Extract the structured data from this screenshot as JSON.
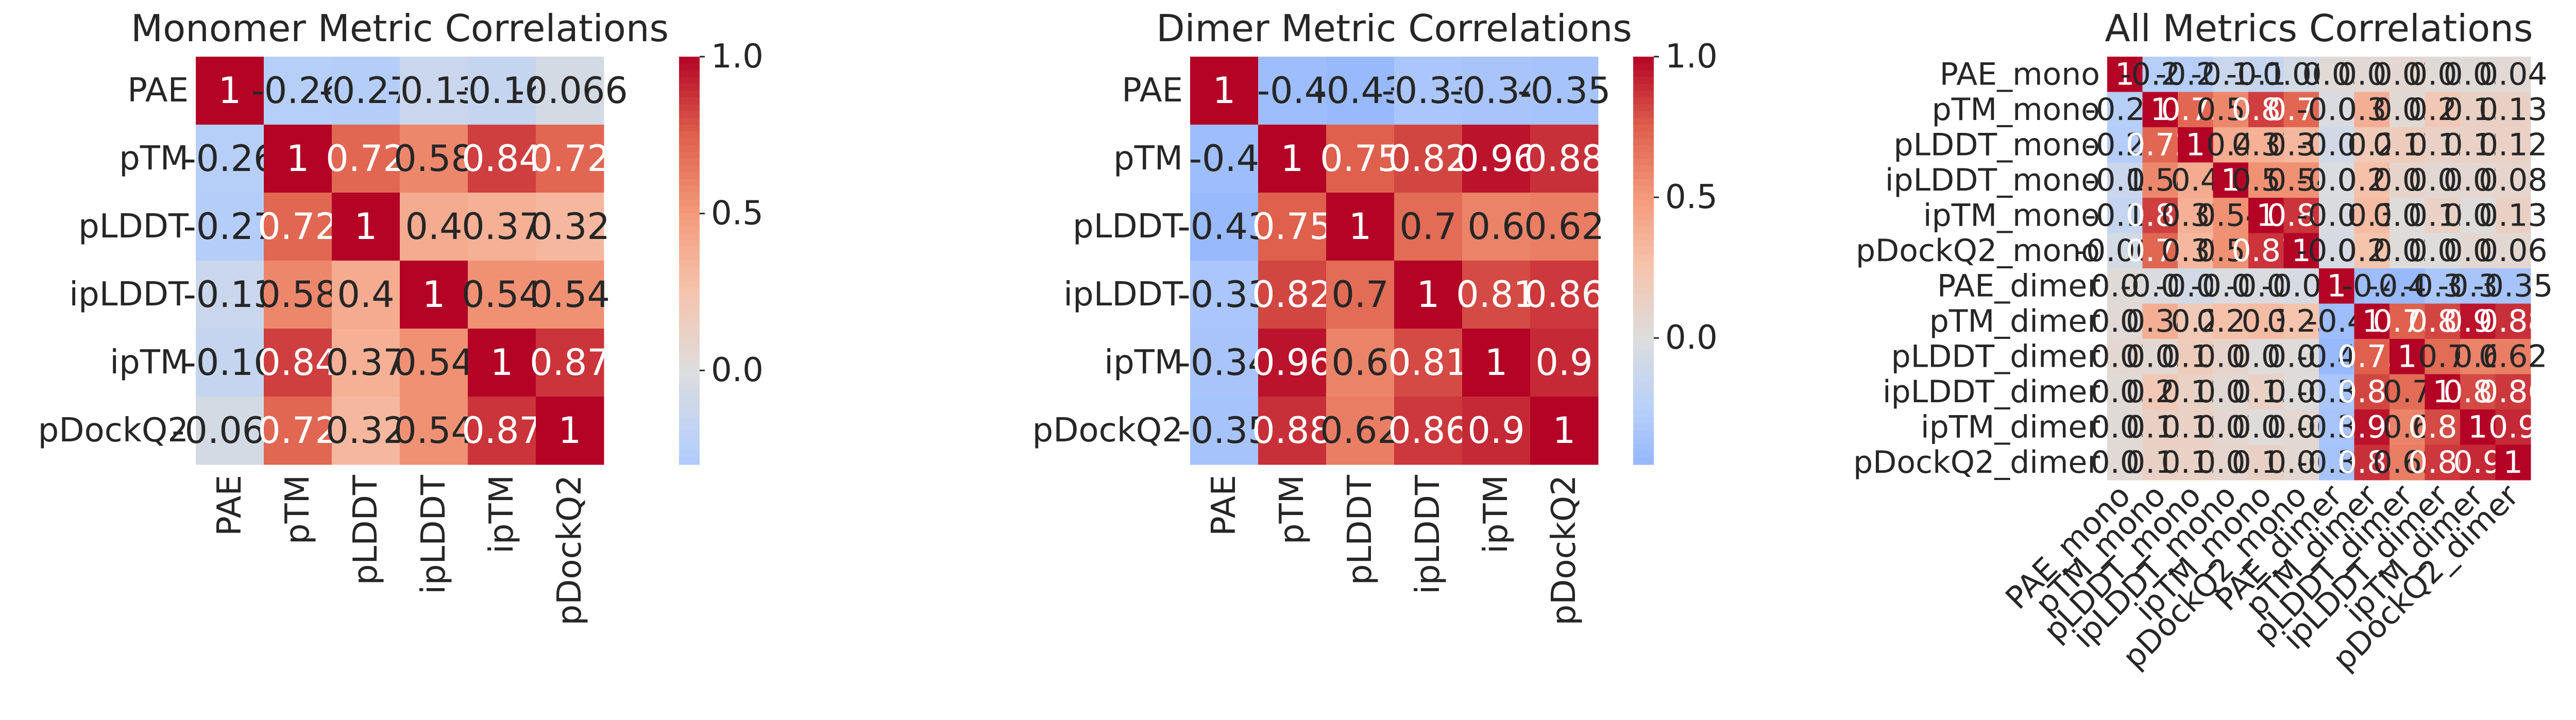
{
  "chart_data": [
    {
      "type": "heatmap",
      "title": "Monomer Metric Correlations",
      "labels": [
        "PAE",
        "pTM",
        "pLDDT",
        "ipLDDT",
        "ipTM",
        "pDockQ2"
      ],
      "values": [
        [
          1,
          -0.26,
          -0.27,
          -0.13,
          -0.16,
          -0.066
        ],
        [
          -0.26,
          1,
          0.72,
          0.58,
          0.84,
          0.72
        ],
        [
          -0.27,
          0.72,
          1,
          0.4,
          0.37,
          0.32
        ],
        [
          -0.13,
          0.58,
          0.4,
          1,
          0.54,
          0.54
        ],
        [
          -0.16,
          0.84,
          0.37,
          0.54,
          1,
          0.87
        ],
        [
          -0.066,
          0.72,
          0.32,
          0.54,
          0.87,
          1
        ]
      ],
      "colorbar_ticks": [
        "1.0",
        "0.5",
        "0.0"
      ],
      "colorbar_range": [
        -0.3,
        1.0
      ],
      "colormap": "coolwarm"
    },
    {
      "type": "heatmap",
      "title": "Dimer Metric Correlations",
      "labels": [
        "PAE",
        "pTM",
        "pLDDT",
        "ipLDDT",
        "ipTM",
        "pDockQ2"
      ],
      "values": [
        [
          1,
          -0.4,
          -0.43,
          -0.33,
          -0.34,
          -0.35
        ],
        [
          -0.4,
          1,
          0.75,
          0.82,
          0.96,
          0.88
        ],
        [
          -0.43,
          0.75,
          1,
          0.7,
          0.6,
          0.62
        ],
        [
          -0.33,
          0.82,
          0.7,
          1,
          0.81,
          0.86
        ],
        [
          -0.34,
          0.96,
          0.6,
          0.81,
          1,
          0.9
        ],
        [
          -0.35,
          0.88,
          0.62,
          0.86,
          0.9,
          1
        ]
      ],
      "colorbar_ticks": [
        "1.0",
        "0.5",
        "0.0"
      ],
      "colorbar_range": [
        -0.45,
        1.0
      ],
      "colormap": "coolwarm"
    },
    {
      "type": "heatmap",
      "title": "All Metrics Correlations",
      "labels": [
        "PAE_mono",
        "pTM_mono",
        "pLDDT_mono",
        "ipLDDT_mono",
        "ipTM_mono",
        "pDockQ2_mono",
        "PAE_dimer",
        "pTM_dimer",
        "pLDDT_dimer",
        "ipLDDT_dimer",
        "ipTM_dimer",
        "pDockQ2_dimer"
      ],
      "values": [
        [
          1,
          -0.26,
          -0.27,
          -0.13,
          -0.16,
          -0.066,
          0.03,
          0.04,
          0.07,
          0.03,
          0.03,
          0.04
        ],
        [
          -0.26,
          1,
          0.72,
          0.58,
          0.84,
          0.72,
          -0.03,
          0.38,
          0.05,
          0.21,
          0.13,
          0.13
        ],
        [
          -0.27,
          0.72,
          1,
          0.4,
          0.37,
          0.32,
          -0.08,
          0.2,
          0.17,
          0.12,
          0.12,
          0.12
        ],
        [
          -0.13,
          0.58,
          0.4,
          1,
          0.54,
          0.54,
          -0.02,
          0.27,
          0.09,
          0.05,
          0.07,
          0.08
        ],
        [
          -0.16,
          0.84,
          0.37,
          0.54,
          1,
          0.87,
          -0.03,
          0.3,
          0.01,
          0.12,
          0.01,
          0.13
        ],
        [
          -0.066,
          0.72,
          0.32,
          0.54,
          0.87,
          1,
          -0.05,
          0.25,
          0.02,
          0.01,
          0.06,
          0.06
        ],
        [
          0.03,
          -0.03,
          -0.08,
          -0.02,
          -0.03,
          -0.05,
          1,
          -0.4,
          -0.43,
          -0.33,
          -0.34,
          -0.35
        ],
        [
          0.04,
          0.38,
          0.2,
          0.27,
          0.3,
          0.25,
          -0.4,
          1,
          0.75,
          0.82,
          0.96,
          0.88
        ],
        [
          0.07,
          0.05,
          0.17,
          0.09,
          0.01,
          0.02,
          -0.43,
          0.75,
          1,
          0.7,
          0.6,
          0.62
        ],
        [
          0.03,
          0.21,
          0.12,
          0.05,
          0.12,
          0.01,
          -0.33,
          0.82,
          0.7,
          1,
          0.81,
          0.86
        ],
        [
          0.03,
          0.13,
          0.12,
          0.07,
          0.01,
          0.06,
          -0.34,
          0.96,
          0.6,
          0.81,
          1,
          0.9
        ],
        [
          0.04,
          0.13,
          0.12,
          0.08,
          0.13,
          0.06,
          -0.35,
          0.88,
          0.62,
          0.86,
          0.9,
          1
        ]
      ],
      "colorbar_ticks": [
        "1.0",
        "0.5",
        "0.0"
      ],
      "colorbar_range": [
        -0.45,
        1.0
      ],
      "colormap": "coolwarm"
    }
  ]
}
